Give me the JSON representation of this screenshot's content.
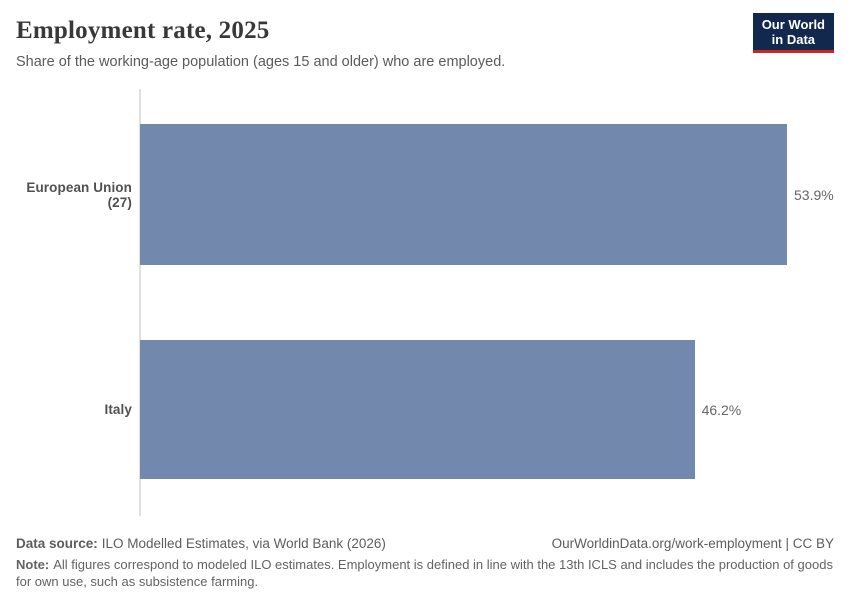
{
  "header": {
    "title": "Employment rate, 2025",
    "subtitle": "Share of the working-age population (ages 15 and older) who are employed.",
    "logo_line1": "Our World",
    "logo_line2": "in Data",
    "logo_bg_color": "#12294d",
    "logo_accent_color": "#cb2521"
  },
  "chart_data": {
    "type": "bar",
    "orientation": "horizontal",
    "categories": [
      "European Union (27)",
      "Italy"
    ],
    "values": [
      53.9,
      46.2
    ],
    "value_labels": [
      "53.9%",
      "46.2%"
    ],
    "title": "Employment rate, 2025",
    "xlabel": "",
    "ylabel": "",
    "xlim": [
      0,
      53.9
    ],
    "grid": false,
    "legend": false,
    "bar_color": "#7288ac",
    "axis_line_color": "#e0e0e0"
  },
  "footer": {
    "source_label": "Data source:",
    "source_text": "ILO Modelled Estimates, via World Bank (2026)",
    "link_text": "OurWorldinData.org/work-employment | CC BY",
    "note_label": "Note:",
    "note_text": "All figures correspond to modeled ILO estimates. Employment is defined in line with the 13th ICLS and includes the production of goods for own use, such as subsistence farming."
  }
}
